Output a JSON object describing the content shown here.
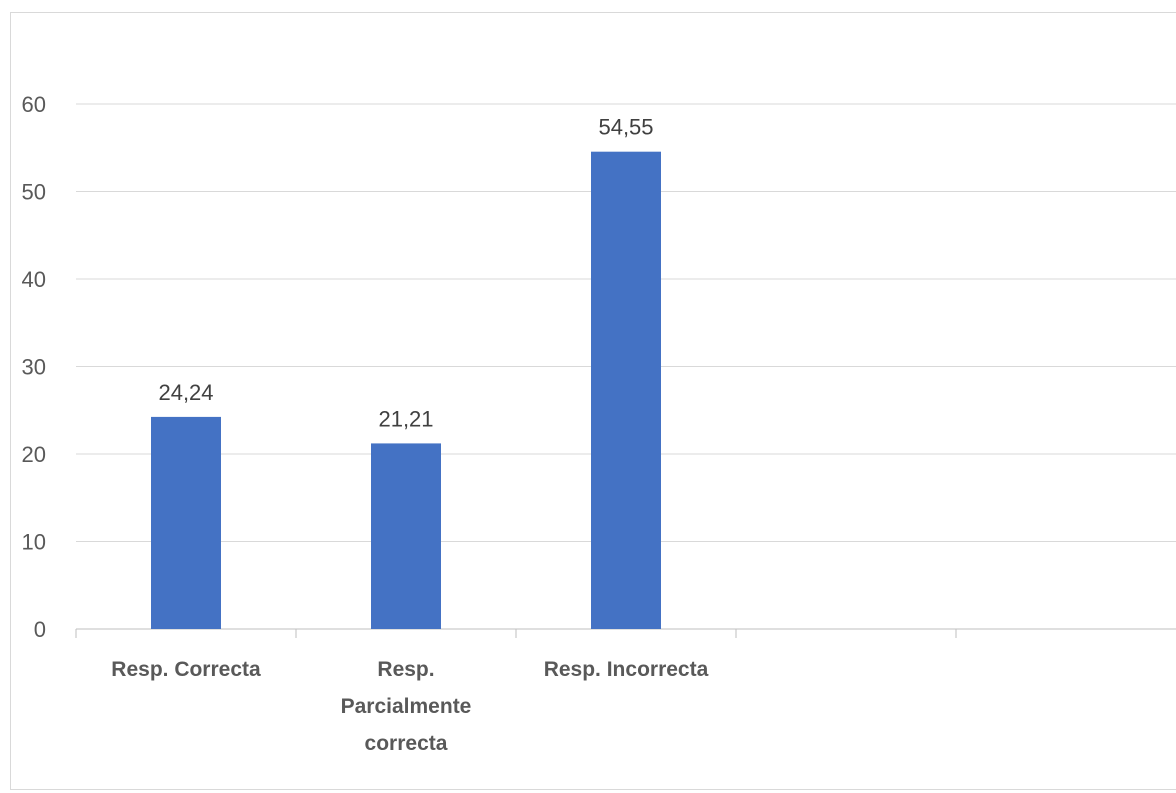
{
  "chart_data": {
    "type": "bar",
    "title": "",
    "xlabel": "",
    "ylabel": "",
    "categories": [
      [
        "Resp. Correcta"
      ],
      [
        "Resp.",
        "Parcialmente",
        "correcta"
      ],
      [
        "Resp. Incorrecta"
      ],
      [
        ""
      ],
      [
        ""
      ]
    ],
    "values": [
      24.24,
      21.21,
      54.55,
      null,
      null
    ],
    "data_labels": [
      "24,24",
      "21,21",
      "54,55",
      "",
      ""
    ],
    "ylim": [
      0,
      60
    ],
    "yticks": [
      0,
      10,
      20,
      30,
      40,
      50,
      60
    ],
    "grid": true,
    "legend": "none",
    "bar_color": "#4472c4"
  }
}
